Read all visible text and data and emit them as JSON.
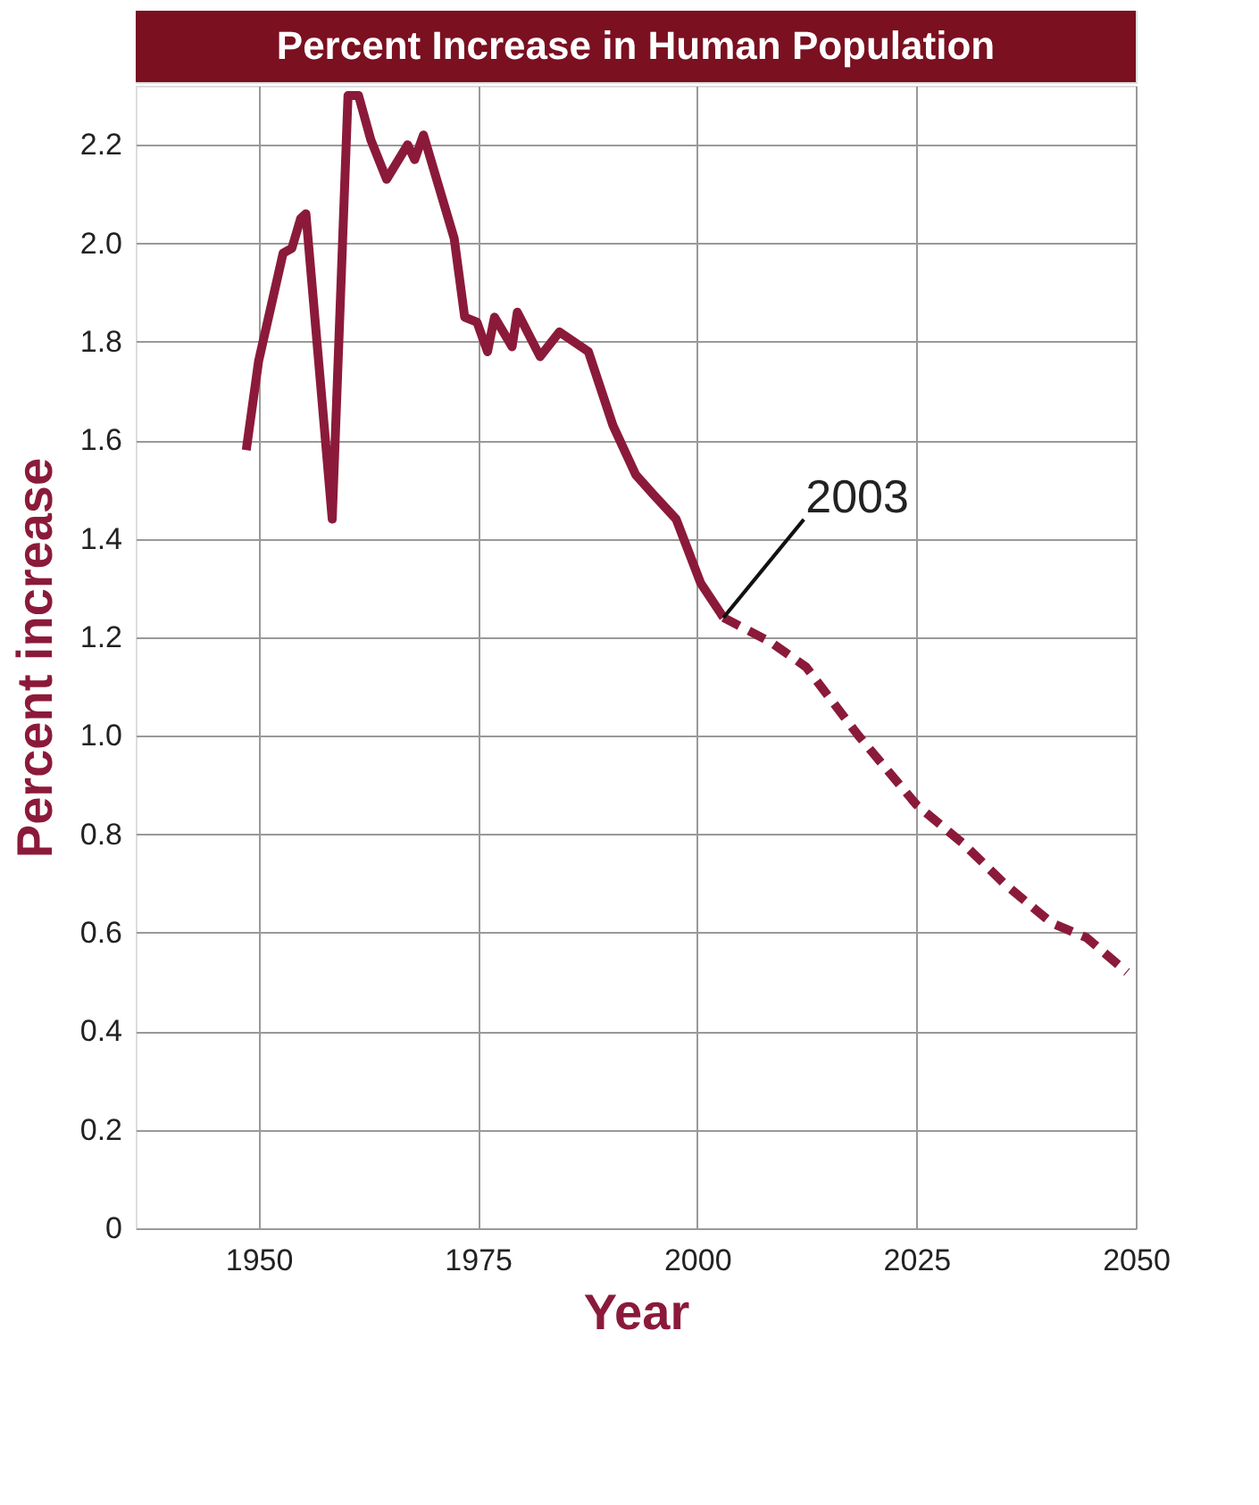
{
  "chart_data": {
    "type": "line",
    "title": "Percent Increase in Human Population",
    "xlabel": "Year",
    "ylabel": "Percent increase",
    "series": [
      {
        "color": "#8b1a3a",
        "line_style": "solid",
        "x": [
          1948.6,
          1950,
          1952.8,
          1953.8,
          1954.8,
          1955.4,
          1958.4,
          1960.2,
          1961.4,
          1962.8,
          1964.6,
          1967,
          1967.8,
          1968.8,
          1972.3,
          1973.5,
          1974.9,
          1976.1,
          1976.9,
          1978.9,
          1979.5,
          1982.1,
          1984.3,
          1987.6,
          1990.4,
          1993,
          1995,
          1997.6,
          2000.4,
          2003
        ],
        "values": [
          1.58,
          1.76,
          1.98,
          1.99,
          2.05,
          2.06,
          1.44,
          2.3,
          2.3,
          2.21,
          2.13,
          2.2,
          2.17,
          2.22,
          2.01,
          1.85,
          1.84,
          1.78,
          1.85,
          1.79,
          1.86,
          1.77,
          1.82,
          1.78,
          1.63,
          1.53,
          1.49,
          1.44,
          1.31,
          1.24
        ]
      },
      {
        "color": "#8b1a3a",
        "line_style": "dashed",
        "x": [
          2003,
          2008.4,
          2012.4,
          2018.4,
          2025,
          2030.4,
          2035,
          2040.4,
          2044.4,
          2049
        ],
        "values": [
          1.24,
          1.19,
          1.14,
          1.0,
          0.86,
          0.78,
          0.7,
          0.62,
          0.59,
          0.52
        ]
      }
    ],
    "annotations": [
      {
        "text": "2003",
        "x": 2003,
        "y": 1.24
      }
    ],
    "xlim": [
      1936,
      2050
    ],
    "xticks": [
      1950,
      1975,
      2000,
      2025,
      2050
    ],
    "ylim": [
      0,
      2.32
    ],
    "yticks": [
      0,
      0.2,
      0.4,
      0.6,
      0.8,
      {
        "value": 1,
        "label": "1.0"
      },
      1.2,
      1.4,
      1.6,
      1.8,
      {
        "value": 2,
        "label": "2.0"
      },
      2.2
    ],
    "grid": true,
    "marker": "none"
  }
}
